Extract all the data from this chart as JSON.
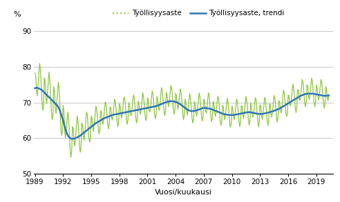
{
  "title": "",
  "ylabel": "%",
  "xlabel": "Vuosi/kuukausi",
  "legend_labels": [
    "Työllisyysaste",
    "Työllisyysaste, trendi"
  ],
  "line_color_main": "#8dc63f",
  "line_color_trend": "#2e75b6",
  "ylim": [
    50,
    92
  ],
  "yticks": [
    50,
    60,
    70,
    80,
    90
  ],
  "xticks": [
    1989,
    1992,
    1995,
    1998,
    2001,
    2004,
    2007,
    2010,
    2013,
    2016,
    2019
  ],
  "background_color": "#ffffff",
  "grid_color": "#b0b0b0",
  "trend_points": [
    74.0,
    74.2,
    74.0,
    73.8,
    73.5,
    73.0,
    72.5,
    72.0,
    71.5,
    71.0,
    70.5,
    70.0,
    69.5,
    69.0,
    68.0,
    66.5,
    65.0,
    63.0,
    61.5,
    60.5,
    60.0,
    59.8,
    59.8,
    60.0,
    60.2,
    60.5,
    60.8,
    61.2,
    61.6,
    62.0,
    62.4,
    62.8,
    63.2,
    63.6,
    64.0,
    64.3,
    64.6,
    64.9,
    65.2,
    65.5,
    65.7,
    65.9,
    66.1,
    66.3,
    66.5,
    66.6,
    66.7,
    66.8,
    66.9,
    67.0,
    67.1,
    67.2,
    67.3,
    67.4,
    67.5,
    67.6,
    67.7,
    67.8,
    67.9,
    68.0,
    68.1,
    68.2,
    68.3,
    68.4,
    68.5,
    68.6,
    68.7,
    68.8,
    68.9,
    69.0,
    69.2,
    69.4,
    69.6,
    69.8,
    70.0,
    70.2,
    70.3,
    70.4,
    70.4,
    70.3,
    70.2,
    70.0,
    69.7,
    69.4,
    69.0,
    68.6,
    68.2,
    67.9,
    67.7,
    67.6,
    67.6,
    67.7,
    67.8,
    68.0,
    68.2,
    68.4,
    68.5,
    68.5,
    68.4,
    68.3,
    68.2,
    68.0,
    67.8,
    67.6,
    67.4,
    67.2,
    67.0,
    66.8,
    66.7,
    66.6,
    66.5,
    66.5,
    66.5,
    66.5,
    66.6,
    66.7,
    66.8,
    66.9,
    67.0,
    67.1,
    67.2,
    67.3,
    67.3,
    67.2,
    67.1,
    67.0,
    66.9,
    66.8,
    66.8,
    66.8,
    66.9,
    67.0,
    67.1,
    67.2,
    67.4,
    67.5,
    67.7,
    67.9,
    68.1,
    68.3,
    68.6,
    68.9,
    69.2,
    69.5,
    69.8,
    70.1,
    70.4,
    70.7,
    71.0,
    71.3,
    71.6,
    71.9,
    72.1,
    72.3,
    72.4,
    72.5,
    72.5,
    72.5,
    72.5,
    72.4,
    72.3,
    72.2,
    72.1,
    72.0,
    71.9,
    71.9,
    71.9,
    72.0
  ],
  "seasonal_pattern": [
    2.5,
    2.0,
    -0.5,
    -1.5,
    0.0,
    2.5,
    4.5,
    3.5,
    1.0,
    -2.0,
    -3.5,
    -2.5
  ],
  "seasonal_pattern_early": [
    4.0,
    3.5,
    -1.0,
    -2.5,
    0.5,
    4.0,
    7.0,
    5.5,
    1.5,
    -3.5,
    -5.5,
    -4.0
  ]
}
